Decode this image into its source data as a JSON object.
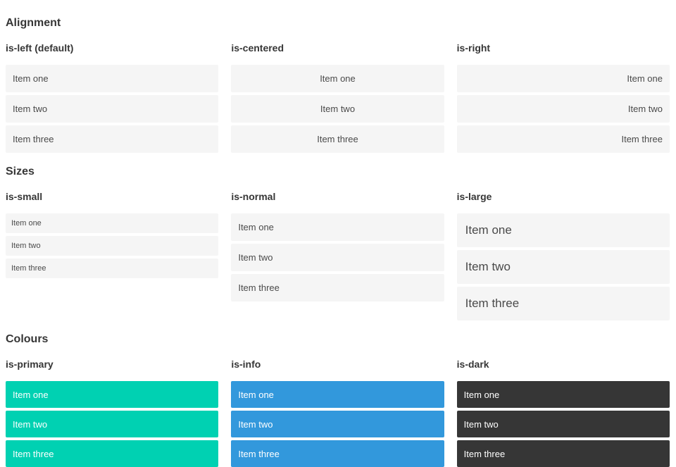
{
  "colors": {
    "primary": "#00d1b2",
    "info": "#3298dc",
    "dark": "#363636",
    "item_bg": "#f5f5f5",
    "item_text": "#4a4a4a",
    "heading_text": "#363636"
  },
  "sections": [
    {
      "title": "Alignment",
      "columns": [
        {
          "heading": "is-left (default)",
          "modifier": "align-left",
          "items": [
            "Item one",
            "Item two",
            "Item three"
          ]
        },
        {
          "heading": "is-centered",
          "modifier": "align-centered",
          "items": [
            "Item one",
            "Item two",
            "Item three"
          ]
        },
        {
          "heading": "is-right",
          "modifier": "align-right",
          "items": [
            "Item one",
            "Item two",
            "Item three"
          ]
        }
      ]
    },
    {
      "title": "Sizes",
      "columns": [
        {
          "heading": "is-small",
          "modifier": "size-small",
          "items": [
            "Item one",
            "Item two",
            "Item three"
          ]
        },
        {
          "heading": "is-normal",
          "modifier": "size-normal",
          "items": [
            "Item one",
            "Item two",
            "Item three"
          ]
        },
        {
          "heading": "is-large",
          "modifier": "size-large",
          "items": [
            "Item one",
            "Item two",
            "Item three"
          ]
        }
      ]
    },
    {
      "title": "Colours",
      "columns": [
        {
          "heading": "is-primary",
          "modifier": "color-primary",
          "items": [
            "Item one",
            "Item two",
            "Item three"
          ]
        },
        {
          "heading": "is-info",
          "modifier": "color-info",
          "items": [
            "Item one",
            "Item two",
            "Item three"
          ]
        },
        {
          "heading": "is-dark",
          "modifier": "color-dark",
          "items": [
            "Item one",
            "Item two",
            "Item three"
          ]
        }
      ]
    }
  ]
}
